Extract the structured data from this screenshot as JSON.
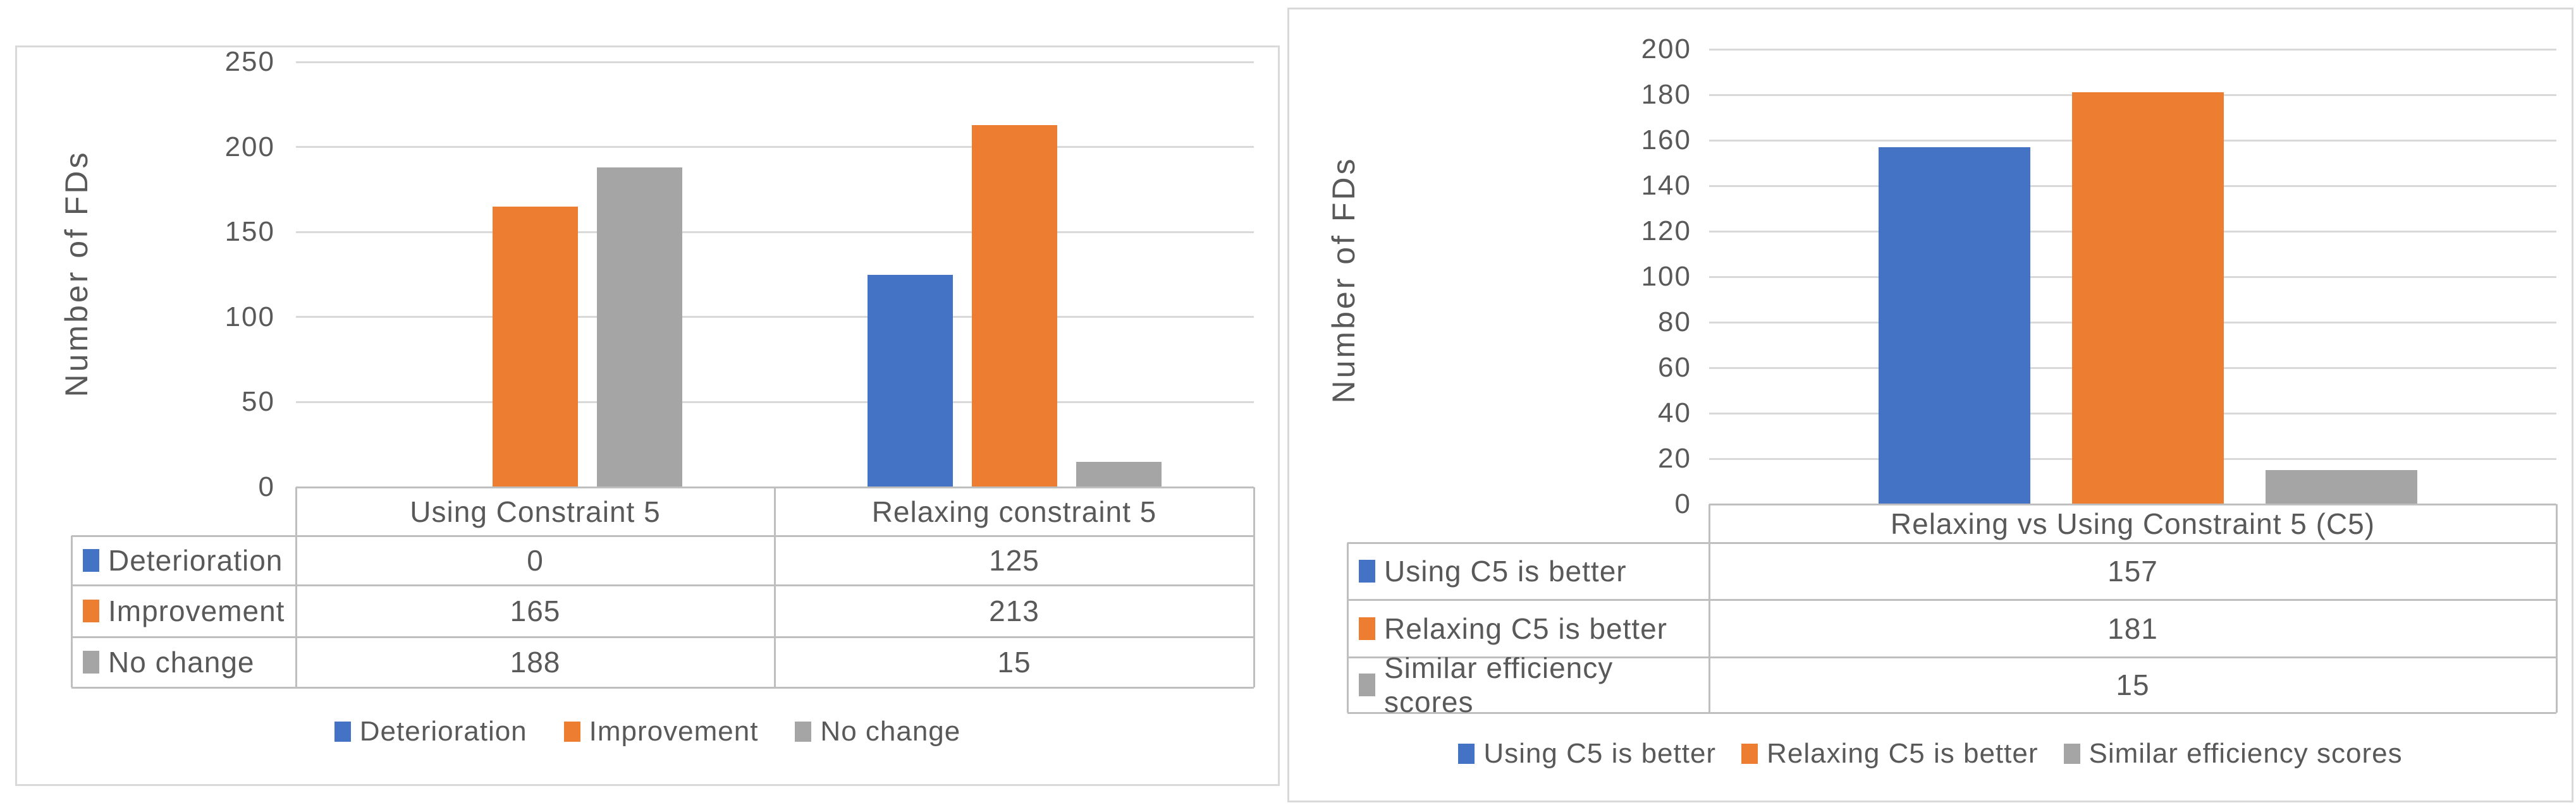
{
  "colors": {
    "blue": "#4472C4",
    "orange": "#ED7D31",
    "gray": "#A5A5A5",
    "gridline": "#D9D9D9",
    "table_border": "#BFBFBF",
    "text": "#595959",
    "panel_border": "#D9D9D9"
  },
  "chart_data": [
    {
      "id": "left",
      "type": "bar",
      "title": "",
      "xlabel": "",
      "ylabel": "Number of FDs",
      "ylim": [
        0,
        250
      ],
      "y_ticks": [
        "250",
        "200",
        "150",
        "100",
        "50",
        "0"
      ],
      "grid": true,
      "legend_position": "bottom",
      "categories": [
        "Using Constraint 5",
        "Relaxing constraint 5"
      ],
      "series": [
        {
          "name": "Deterioration",
          "color_key": "blue",
          "values": [
            0,
            125
          ]
        },
        {
          "name": "Improvement",
          "color_key": "orange",
          "values": [
            165,
            213
          ]
        },
        {
          "name": "No change",
          "color_key": "gray",
          "values": [
            188,
            15
          ]
        }
      ],
      "data_table_values": [
        [
          "0",
          "125"
        ],
        [
          "165",
          "213"
        ],
        [
          "188",
          "15"
        ]
      ]
    },
    {
      "id": "right",
      "type": "bar",
      "title": "",
      "xlabel": "",
      "ylabel": "Number of FDs",
      "ylim": [
        0,
        200
      ],
      "y_ticks": [
        "200",
        "180",
        "160",
        "140",
        "120",
        "100",
        "80",
        "60",
        "40",
        "20",
        "0"
      ],
      "grid": true,
      "legend_position": "bottom",
      "categories": [
        "Relaxing vs Using Constraint 5 (C5)"
      ],
      "series": [
        {
          "name": "Using C5 is better",
          "color_key": "blue",
          "values": [
            157
          ]
        },
        {
          "name": "Relaxing C5 is better",
          "color_key": "orange",
          "values": [
            181
          ]
        },
        {
          "name": "Similar efficiency scores",
          "color_key": "gray",
          "values": [
            15
          ]
        }
      ],
      "data_table_values": [
        [
          "157"
        ],
        [
          "181"
        ],
        [
          "15"
        ]
      ]
    }
  ]
}
